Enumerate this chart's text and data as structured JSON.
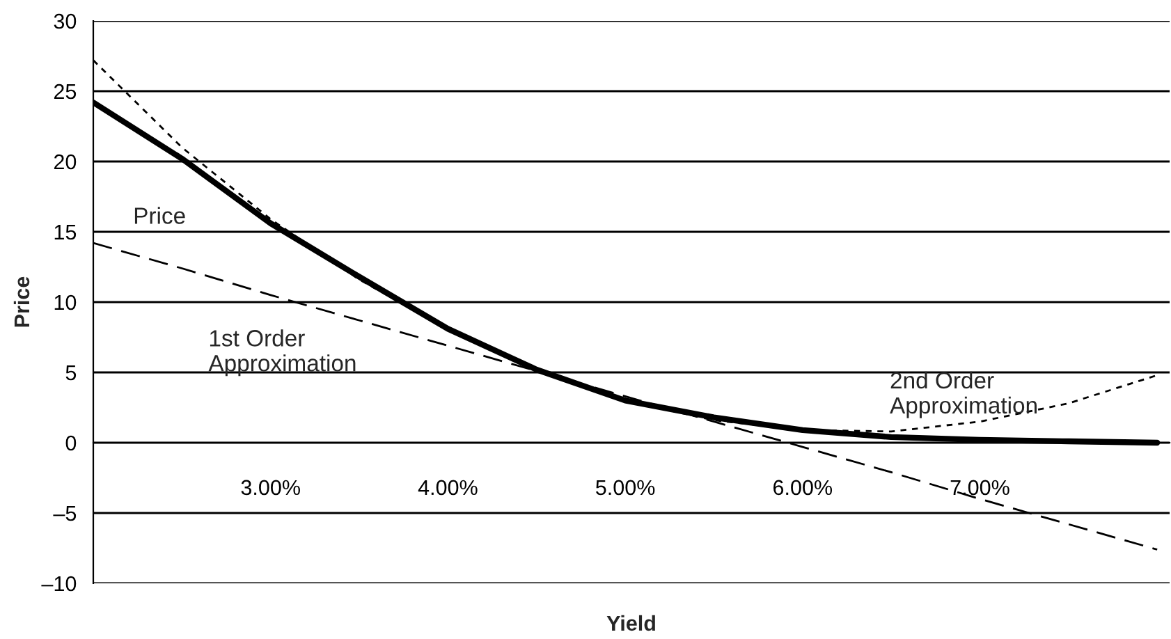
{
  "chart_data": {
    "type": "line",
    "xlabel": "Yield",
    "ylabel": "Price",
    "x": [
      2.0,
      2.5,
      3.0,
      3.5,
      4.0,
      4.5,
      5.0,
      5.5,
      6.0,
      6.5,
      7.0,
      7.5,
      8.0
    ],
    "series": [
      {
        "color": "#000000",
        "line_style": "solid",
        "values": [
          24.2,
          20.2,
          15.6,
          11.8,
          8.1,
          5.2,
          3.0,
          1.8,
          0.9,
          0.4,
          0.2,
          0.1,
          0.0
        ]
      },
      {
        "color": "#000000",
        "line_style": "dashed",
        "values": [
          14.2,
          12.4,
          10.5,
          8.7,
          6.9,
          5.1,
          3.3,
          1.5,
          -0.3,
          -2.1,
          -4.0,
          -5.8,
          -7.6
        ]
      },
      {
        "color": "#000000",
        "line_style": "dotted",
        "values": [
          27.2,
          21.0,
          15.9,
          11.6,
          8.1,
          5.2,
          3.0,
          1.6,
          0.9,
          0.8,
          1.5,
          2.8,
          4.8
        ]
      }
    ],
    "xlim": [
      2.0,
      8.07
    ],
    "xticks": [
      {
        "value": 3,
        "label": "3.00%"
      },
      {
        "value": 4,
        "label": "4.00%"
      },
      {
        "value": 5,
        "label": "5.00%"
      },
      {
        "value": 6,
        "label": "6.00%"
      },
      {
        "value": 7,
        "label": "7.00%"
      }
    ],
    "ylim": [
      -10,
      30
    ],
    "yticks": [
      {
        "value": -10,
        "label": "–10"
      },
      {
        "value": -5,
        "label": "–5"
      },
      0,
      5,
      10,
      15,
      20,
      25,
      30
    ],
    "grid": "y",
    "legend": false,
    "annotations": [
      "Price",
      "1st Order\nApproximation",
      "2nd Order\nApproximation"
    ]
  }
}
